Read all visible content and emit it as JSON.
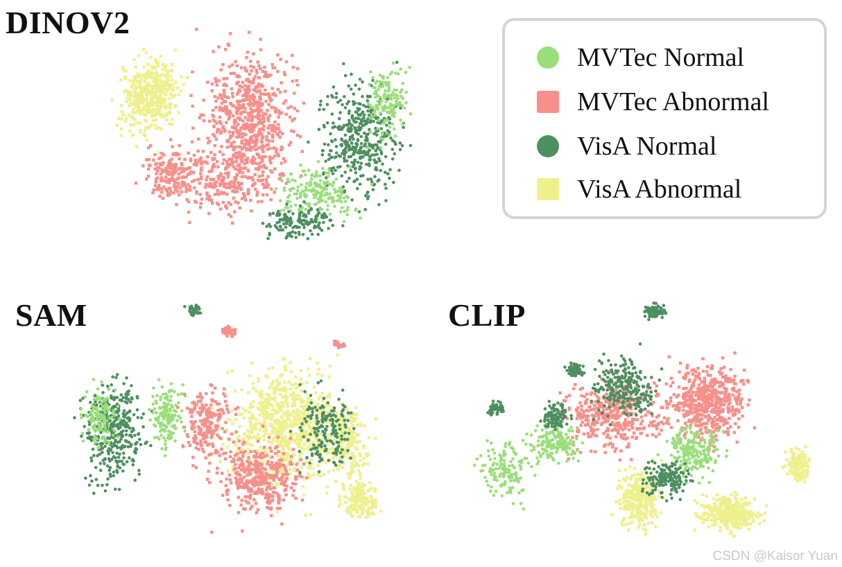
{
  "chart_data": [
    {
      "type": "scatter",
      "title": "DINOV2",
      "series": [
        {
          "name": "MVTec Normal",
          "color": "#9ade7a",
          "marker": "circle"
        },
        {
          "name": "MVTec Abnormal",
          "color": "#f78f8a",
          "marker": "square"
        },
        {
          "name": "VisA Normal",
          "color": "#4e8f60",
          "marker": "circle"
        },
        {
          "name": "VisA Abnormal",
          "color": "#eef08c",
          "marker": "square"
        }
      ]
    },
    {
      "type": "scatter",
      "title": "SAM",
      "series": [
        {
          "name": "MVTec Normal",
          "color": "#9ade7a",
          "marker": "circle"
        },
        {
          "name": "MVTec Abnormal",
          "color": "#f78f8a",
          "marker": "square"
        },
        {
          "name": "VisA Normal",
          "color": "#4e8f60",
          "marker": "circle"
        },
        {
          "name": "VisA Abnormal",
          "color": "#eef08c",
          "marker": "square"
        }
      ]
    },
    {
      "type": "scatter",
      "title": "CLIP",
      "series": [
        {
          "name": "MVTec Normal",
          "color": "#9ade7a",
          "marker": "circle"
        },
        {
          "name": "MVTec Abnormal",
          "color": "#f78f8a",
          "marker": "square"
        },
        {
          "name": "VisA Normal",
          "color": "#4e8f60",
          "marker": "circle"
        },
        {
          "name": "VisA Abnormal",
          "color": "#eef08c",
          "marker": "square"
        }
      ]
    }
  ],
  "legend": {
    "placement": "top-right",
    "items": [
      {
        "label": "MVTec Normal",
        "color": "#9ade7a",
        "marker": "circle"
      },
      {
        "label": "MVTec Abnormal",
        "color": "#f78f8a",
        "marker": "square"
      },
      {
        "label": "VisA Normal",
        "color": "#4e8f60",
        "marker": "circle"
      },
      {
        "label": "VisA Abnormal",
        "color": "#eef08c",
        "marker": "square"
      }
    ]
  },
  "watermark": "CSDN @Kaisor Yuan"
}
